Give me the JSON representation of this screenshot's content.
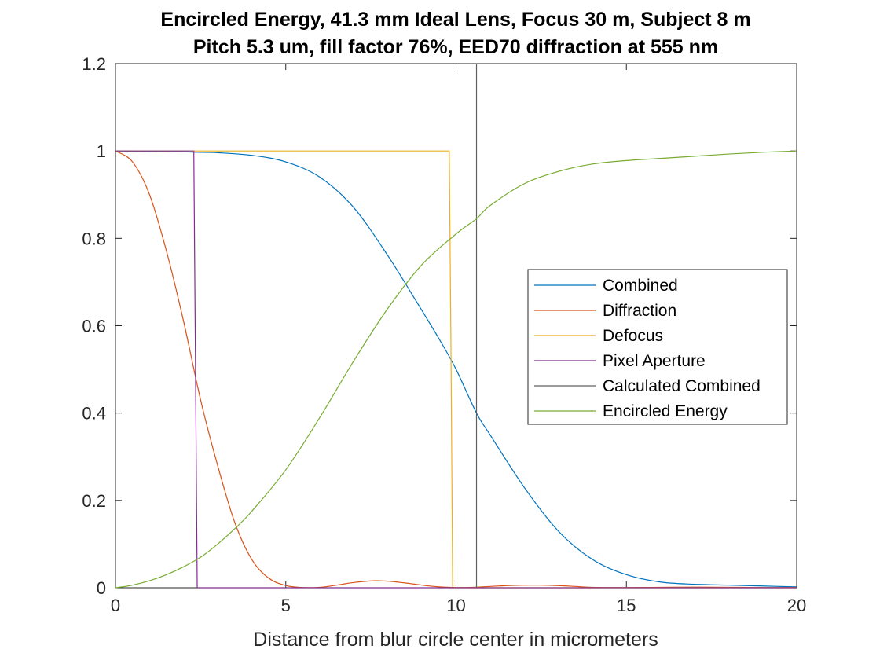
{
  "chart_data": {
    "type": "line",
    "title": [
      "Encircled Energy, 41.3 mm Ideal Lens, Focus 30 m, Subject 8 m",
      "Pitch 5.3 um, fill factor 76%, EED70 diffraction at 555 nm"
    ],
    "xlabel": "Distance from blur circle center in micrometers",
    "ylabel": "",
    "xlim": [
      0,
      20
    ],
    "ylim": [
      0,
      1.2
    ],
    "xticks": [
      0,
      5,
      10,
      15,
      20
    ],
    "xtick_labels": [
      "0",
      "5",
      "10",
      "15",
      "20"
    ],
    "yticks": [
      0,
      0.2,
      0.4,
      0.6,
      0.8,
      1,
      1.2
    ],
    "ytick_labels": [
      "0",
      "0.2",
      "0.4",
      "0.6",
      "0.8",
      "1",
      "1.2"
    ],
    "grid": false,
    "legend_position": "right",
    "series": [
      {
        "name": "Combined",
        "color": "#0072BD",
        "x": [
          0,
          1,
          2,
          2.4,
          3,
          4,
          5,
          6,
          7,
          8,
          8.8,
          9.5,
          10,
          10.6,
          11,
          12,
          13,
          14,
          15,
          16,
          17,
          18,
          19,
          20
        ],
        "y": [
          1,
          0.999,
          0.998,
          0.997,
          0.996,
          0.99,
          0.975,
          0.94,
          0.87,
          0.76,
          0.66,
          0.57,
          0.5,
          0.4,
          0.35,
          0.23,
          0.13,
          0.065,
          0.03,
          0.013,
          0.008,
          0.006,
          0.004,
          0.002
        ]
      },
      {
        "name": "Diffraction",
        "color": "#D95319",
        "x": [
          0,
          0.5,
          1,
          1.5,
          2,
          2.5,
          3,
          3.5,
          4,
          4.5,
          5,
          5.5,
          6,
          6.5,
          7,
          7.6,
          8,
          8.5,
          9,
          9.5,
          10,
          10.5,
          11,
          11.5,
          12,
          12.5,
          13,
          13.5,
          14,
          15,
          16,
          17,
          18,
          19,
          20
        ],
        "y": [
          1,
          0.975,
          0.9,
          0.77,
          0.61,
          0.43,
          0.28,
          0.15,
          0.065,
          0.022,
          0.005,
          0.0005,
          0.001,
          0.006,
          0.012,
          0.016,
          0.015,
          0.011,
          0.006,
          0.002,
          0.0005,
          0.001,
          0.003,
          0.005,
          0.006,
          0.006,
          0.005,
          0.003,
          0.001,
          0.0005,
          0.001,
          0.0015,
          0.001,
          0.0005,
          0.0005
        ]
      },
      {
        "name": "Defocus",
        "color": "#EDB120",
        "x": [
          0,
          9.8,
          9.85,
          9.9,
          20
        ],
        "y": [
          1,
          1,
          0.55,
          0,
          0
        ]
      },
      {
        "name": "Pixel Aperture",
        "color": "#7E2F8E",
        "x": [
          0,
          2.3,
          2.35,
          2.4,
          20
        ],
        "y": [
          1,
          1,
          0.5,
          0,
          0
        ]
      },
      {
        "name": "Calculated Combined",
        "color": "#606060",
        "x": [
          10.6,
          10.6
        ],
        "y": [
          0,
          1.2
        ]
      },
      {
        "name": "Encircled Energy",
        "color": "#77AC30",
        "x": [
          0,
          0.5,
          1,
          1.5,
          2,
          2.5,
          3,
          3.5,
          4,
          5,
          6,
          7,
          8,
          9,
          10,
          10.6,
          11,
          12,
          13,
          14,
          15,
          16,
          17,
          18,
          19,
          20
        ],
        "y": [
          0,
          0.006,
          0.016,
          0.03,
          0.048,
          0.07,
          0.1,
          0.135,
          0.175,
          0.27,
          0.39,
          0.52,
          0.64,
          0.74,
          0.81,
          0.845,
          0.875,
          0.925,
          0.953,
          0.97,
          0.978,
          0.983,
          0.988,
          0.993,
          0.997,
          1.0
        ]
      }
    ]
  }
}
